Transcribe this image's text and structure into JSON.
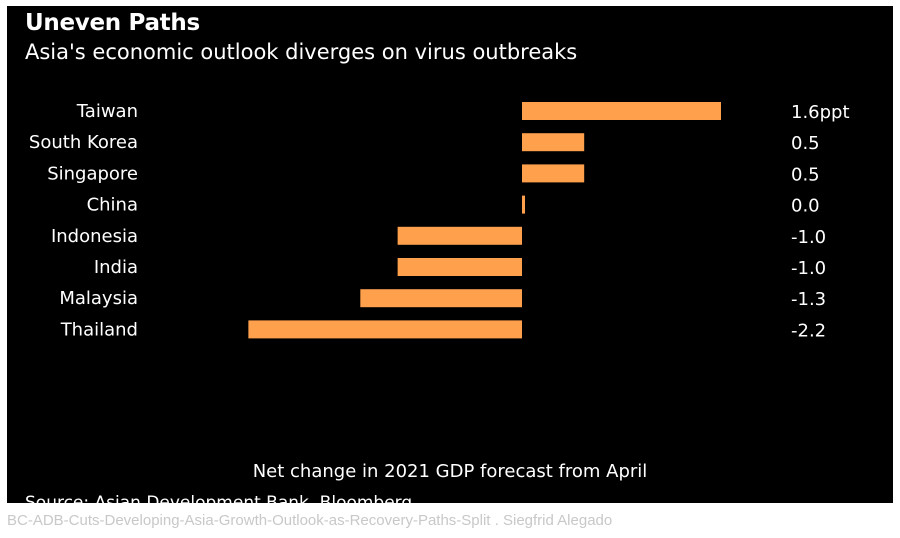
{
  "chart_data": {
    "type": "bar",
    "orientation": "horizontal",
    "title": "Uneven Paths",
    "subtitle": "Asia's economic outlook diverges on virus outbreaks",
    "xlabel": "Net change in 2021 GDP forecast from April",
    "categories": [
      "Taiwan",
      "South Korea",
      "Singapore",
      "China",
      "Indonesia",
      "India",
      "Malaysia",
      "Thailand"
    ],
    "values": [
      1.6,
      0.5,
      0.5,
      0.0,
      -1.0,
      -1.0,
      -1.3,
      -2.2
    ],
    "value_labels": [
      "1.6ppt",
      "0.5",
      "0.5",
      "0.0",
      "-1.0",
      "-1.0",
      "-1.3",
      "-2.2"
    ],
    "xlim": [
      -2.2,
      1.6
    ],
    "bar_color": "#ffa04c",
    "background_color": "#000000",
    "source": "Source: Asian Development Bank, Bloomberg",
    "grid": false,
    "legend": "none"
  },
  "caption": "BC-ADB-Cuts-Developing-Asia-Growth-Outlook-as-Recovery-Paths-Split . Siegfrid Alegado"
}
